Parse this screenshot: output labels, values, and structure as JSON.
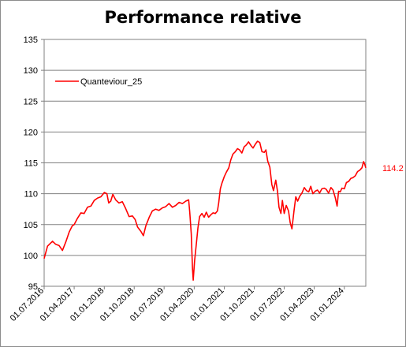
{
  "chart_data": {
    "type": "line",
    "title": "Performance relative",
    "xlabel": "",
    "ylabel": "",
    "ylim": [
      95,
      135
    ],
    "yticks": [
      95,
      100,
      105,
      110,
      115,
      120,
      125,
      130,
      135
    ],
    "grid": "horizontal",
    "legend": "top-left inside plot",
    "x_ticks": [
      "01.07.2016",
      "01.04.2017",
      "01.01.2018",
      "01.10.2018",
      "01.07.2019",
      "01.04.2020",
      "01.01.2021",
      "01.10.2021",
      "01.07.2022",
      "01.04.2023",
      "01.01.2024"
    ],
    "series": [
      {
        "name": "Quanteviour_25",
        "color": "#ff0000",
        "end_label": "114.2",
        "x": [
          "2016-07-01",
          "2016-08-01",
          "2016-09-15",
          "2016-10-15",
          "2016-11-15",
          "2016-12-15",
          "2017-01-15",
          "2017-02-15",
          "2017-03-15",
          "2017-04-01",
          "2017-05-01",
          "2017-06-01",
          "2017-07-01",
          "2017-08-01",
          "2017-09-01",
          "2017-10-01",
          "2017-11-01",
          "2017-12-01",
          "2018-01-01",
          "2018-01-25",
          "2018-02-10",
          "2018-03-01",
          "2018-03-20",
          "2018-04-15",
          "2018-05-15",
          "2018-06-15",
          "2018-07-15",
          "2018-08-15",
          "2018-09-15",
          "2018-10-10",
          "2018-11-01",
          "2018-12-01",
          "2018-12-24",
          "2019-01-15",
          "2019-02-15",
          "2019-03-15",
          "2019-04-15",
          "2019-05-15",
          "2019-06-15",
          "2019-07-15",
          "2019-08-15",
          "2019-09-15",
          "2019-10-15",
          "2019-11-15",
          "2019-12-15",
          "2020-01-15",
          "2020-02-10",
          "2020-02-20",
          "2020-03-05",
          "2020-03-16",
          "2020-03-23",
          "2020-04-05",
          "2020-04-20",
          "2020-05-05",
          "2020-05-20",
          "2020-06-10",
          "2020-07-01",
          "2020-07-20",
          "2020-08-10",
          "2020-09-01",
          "2020-09-20",
          "2020-10-10",
          "2020-10-30",
          "2020-11-10",
          "2020-11-25",
          "2020-12-10",
          "2021-01-01",
          "2021-01-20",
          "2021-02-10",
          "2021-03-01",
          "2021-03-20",
          "2021-04-10",
          "2021-05-01",
          "2021-05-20",
          "2021-06-10",
          "2021-07-01",
          "2021-07-20",
          "2021-08-10",
          "2021-09-01",
          "2021-09-20",
          "2021-10-10",
          "2021-10-30",
          "2021-11-20",
          "2021-12-10",
          "2022-01-01",
          "2022-01-15",
          "2022-02-01",
          "2022-02-20",
          "2022-03-10",
          "2022-03-25",
          "2022-04-15",
          "2022-05-01",
          "2022-05-15",
          "2022-06-01",
          "2022-06-15",
          "2022-07-01",
          "2022-07-20",
          "2022-08-10",
          "2022-08-25",
          "2022-09-10",
          "2022-09-30",
          "2022-10-15",
          "2022-11-01",
          "2022-11-20",
          "2022-12-10",
          "2023-01-01",
          "2023-01-20",
          "2023-02-10",
          "2023-03-01",
          "2023-03-20",
          "2023-04-10",
          "2023-05-01",
          "2023-05-20",
          "2023-06-10",
          "2023-07-01",
          "2023-07-20",
          "2023-08-10",
          "2023-09-01",
          "2023-09-20",
          "2023-10-10",
          "2023-10-27",
          "2023-11-10",
          "2023-11-25",
          "2023-12-10",
          "2024-01-01",
          "2024-01-20",
          "2024-02-10",
          "2024-03-01",
          "2024-03-20",
          "2024-04-10",
          "2024-05-01",
          "2024-05-20",
          "2024-06-10",
          "2024-06-25",
          "2024-07-05",
          "2024-07-15"
        ],
        "values": [
          99.5,
          101.5,
          102.3,
          101.8,
          101.6,
          100.8,
          102.2,
          103.8,
          104.8,
          105.0,
          106.0,
          106.9,
          106.8,
          107.8,
          108.0,
          108.9,
          109.3,
          109.5,
          110.2,
          110.0,
          108.5,
          108.8,
          109.9,
          109.0,
          108.5,
          108.7,
          107.6,
          106.3,
          106.4,
          105.8,
          104.6,
          103.9,
          103.2,
          104.8,
          106.2,
          107.2,
          107.5,
          107.3,
          107.7,
          107.9,
          108.4,
          107.8,
          108.1,
          108.6,
          108.4,
          108.8,
          109.0,
          107.0,
          103.5,
          97.8,
          96.0,
          99.2,
          101.8,
          104.5,
          106.3,
          106.8,
          106.2,
          107.0,
          106.2,
          106.6,
          106.9,
          106.8,
          107.2,
          108.5,
          110.8,
          111.7,
          112.8,
          113.5,
          114.2,
          115.5,
          116.4,
          116.8,
          117.3,
          117.1,
          116.6,
          117.6,
          117.9,
          118.4,
          117.8,
          117.4,
          118.0,
          118.5,
          118.3,
          116.8,
          116.7,
          117.1,
          115.3,
          114.3,
          111.5,
          110.5,
          112.2,
          110.4,
          107.8,
          106.8,
          108.9,
          106.8,
          108.1,
          107.2,
          105.3,
          104.3,
          107.4,
          109.5,
          108.8,
          109.6,
          110.1,
          111.0,
          110.5,
          110.3,
          111.2,
          110.0,
          110.4,
          110.6,
          110.1,
          110.8,
          110.9,
          110.7,
          110.1,
          111.0,
          110.6,
          109.4,
          108.0,
          110.4,
          110.3,
          110.9,
          110.8,
          111.8,
          112.0,
          112.5,
          112.6,
          112.9,
          113.6,
          113.8,
          114.2,
          115.2,
          114.8,
          114.2
        ]
      }
    ]
  }
}
